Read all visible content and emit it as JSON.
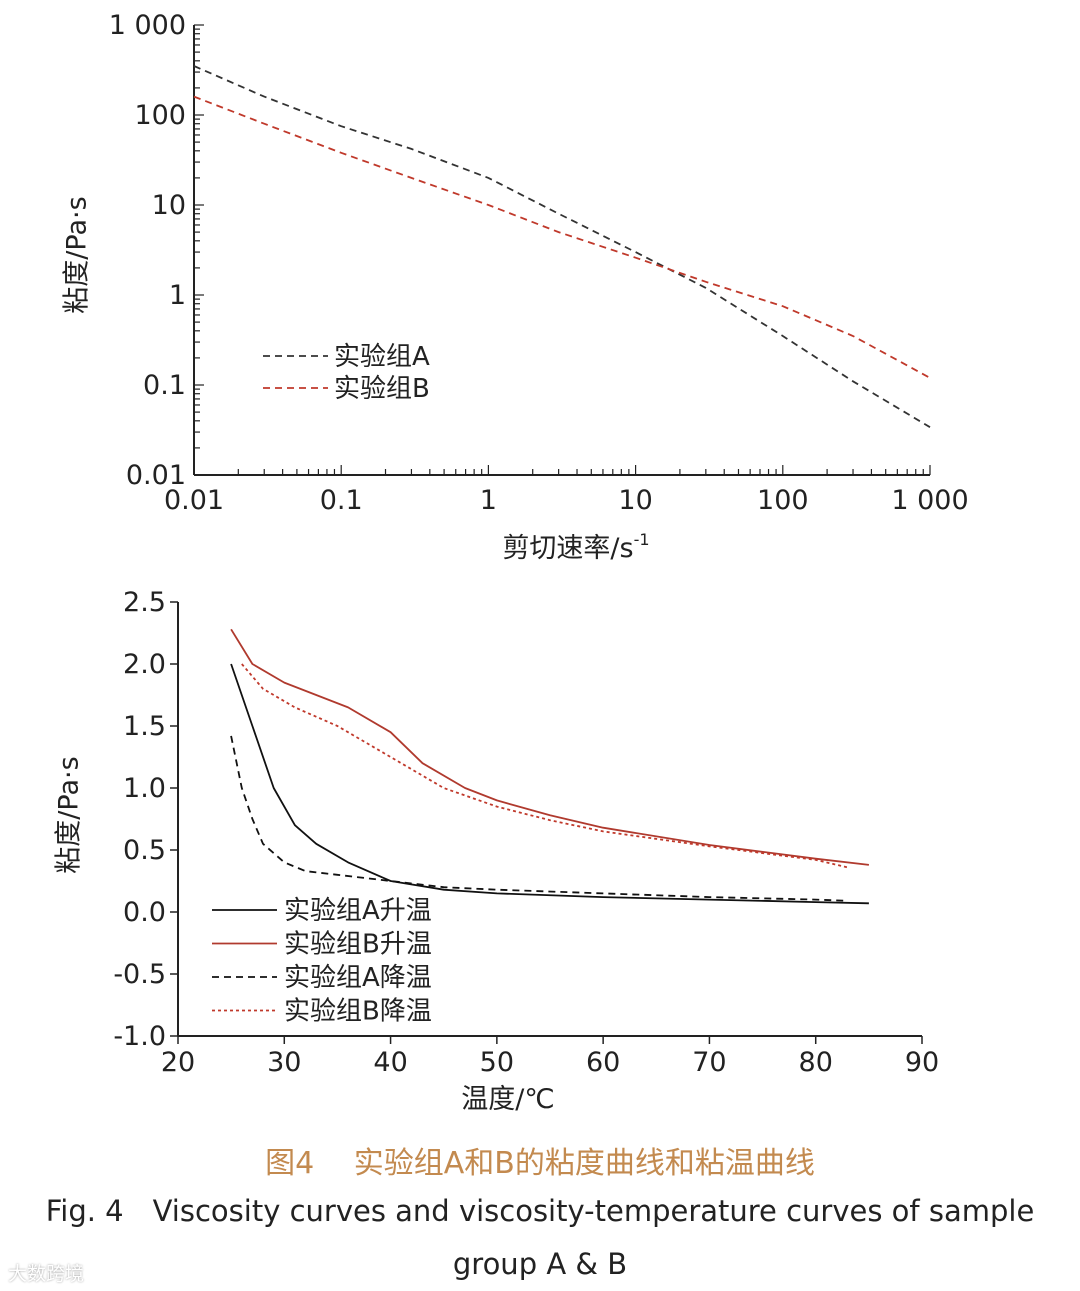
{
  "chart_data": [
    {
      "type": "line",
      "scale": "log-log",
      "xlabel": "剪切速率/s",
      "xlabel_sup": "-1",
      "ylabel": "粘度/Pa·s",
      "xlim": [
        0.01,
        1000
      ],
      "ylim": [
        0.01,
        1000
      ],
      "x_ticks": [
        "0.01",
        "0.1",
        "1",
        "10",
        "100",
        "1 000"
      ],
      "y_ticks": [
        "0.01",
        "0.1",
        "1",
        "10",
        "100",
        "1 000"
      ],
      "legend_position": "center-left",
      "series": [
        {
          "name": "实验组A",
          "color": "#333333",
          "style": "dashed",
          "x": [
            0.01,
            0.03,
            0.1,
            0.3,
            1,
            3,
            10,
            30,
            100,
            300,
            1000
          ],
          "y": [
            350,
            160,
            75,
            42,
            20,
            8,
            3,
            1.2,
            0.35,
            0.11,
            0.034
          ]
        },
        {
          "name": "实验组B",
          "color": "#c0392b",
          "style": "dashed",
          "x": [
            0.01,
            0.03,
            0.1,
            0.3,
            1,
            3,
            10,
            30,
            100,
            300,
            1000
          ],
          "y": [
            160,
            80,
            38,
            20,
            10,
            5,
            2.6,
            1.4,
            0.75,
            0.35,
            0.12
          ]
        }
      ]
    },
    {
      "type": "line",
      "xlabel": "温度/℃",
      "ylabel": "粘度/Pa·s",
      "xlim": [
        20,
        90
      ],
      "ylim": [
        -1.0,
        2.5
      ],
      "x_ticks": [
        "20",
        "30",
        "40",
        "50",
        "60",
        "70",
        "80",
        "90"
      ],
      "y_ticks": [
        "-1.0",
        "-0.5",
        "0.0",
        "0.5",
        "1.0",
        "1.5",
        "2.0",
        "2.5"
      ],
      "legend_position": "lower-left",
      "series": [
        {
          "name": "实验组A升温",
          "color": "#111111",
          "style": "solid",
          "x": [
            25,
            27,
            29,
            31,
            33,
            36,
            40,
            45,
            50,
            60,
            70,
            80,
            85
          ],
          "y": [
            2.0,
            1.5,
            1.0,
            0.7,
            0.55,
            0.4,
            0.25,
            0.18,
            0.15,
            0.12,
            0.1,
            0.08,
            0.07
          ]
        },
        {
          "name": "实验组B升温",
          "color": "#b03a2e",
          "style": "solid",
          "x": [
            25,
            27,
            30,
            33,
            36,
            40,
            43,
            47,
            50,
            55,
            60,
            70,
            80,
            85
          ],
          "y": [
            2.28,
            2.0,
            1.85,
            1.75,
            1.65,
            1.45,
            1.2,
            1.0,
            0.9,
            0.78,
            0.68,
            0.54,
            0.43,
            0.38
          ]
        },
        {
          "name": "实验组A降温",
          "color": "#111111",
          "style": "dashed",
          "x": [
            25,
            26,
            27,
            28,
            30,
            32,
            35,
            40,
            45,
            50,
            60,
            70,
            80,
            83
          ],
          "y": [
            1.42,
            1.0,
            0.75,
            0.55,
            0.4,
            0.33,
            0.3,
            0.25,
            0.2,
            0.18,
            0.15,
            0.12,
            0.1,
            0.09
          ]
        },
        {
          "name": "实验组B降温",
          "color": "#c0392b",
          "style": "dotted",
          "x": [
            26,
            28,
            31,
            35,
            40,
            45,
            50,
            55,
            60,
            70,
            80,
            83
          ],
          "y": [
            2.0,
            1.8,
            1.65,
            1.5,
            1.25,
            1.0,
            0.85,
            0.74,
            0.65,
            0.53,
            0.42,
            0.36
          ]
        }
      ]
    }
  ],
  "caption": {
    "cn": "图4　 实验组A和B的粘度曲线和粘温曲线",
    "en_line1": "Fig. 4　Viscosity curves and viscosity-temperature curves of sample",
    "en_line2": "group A & B"
  },
  "watermark": "大数跨境"
}
